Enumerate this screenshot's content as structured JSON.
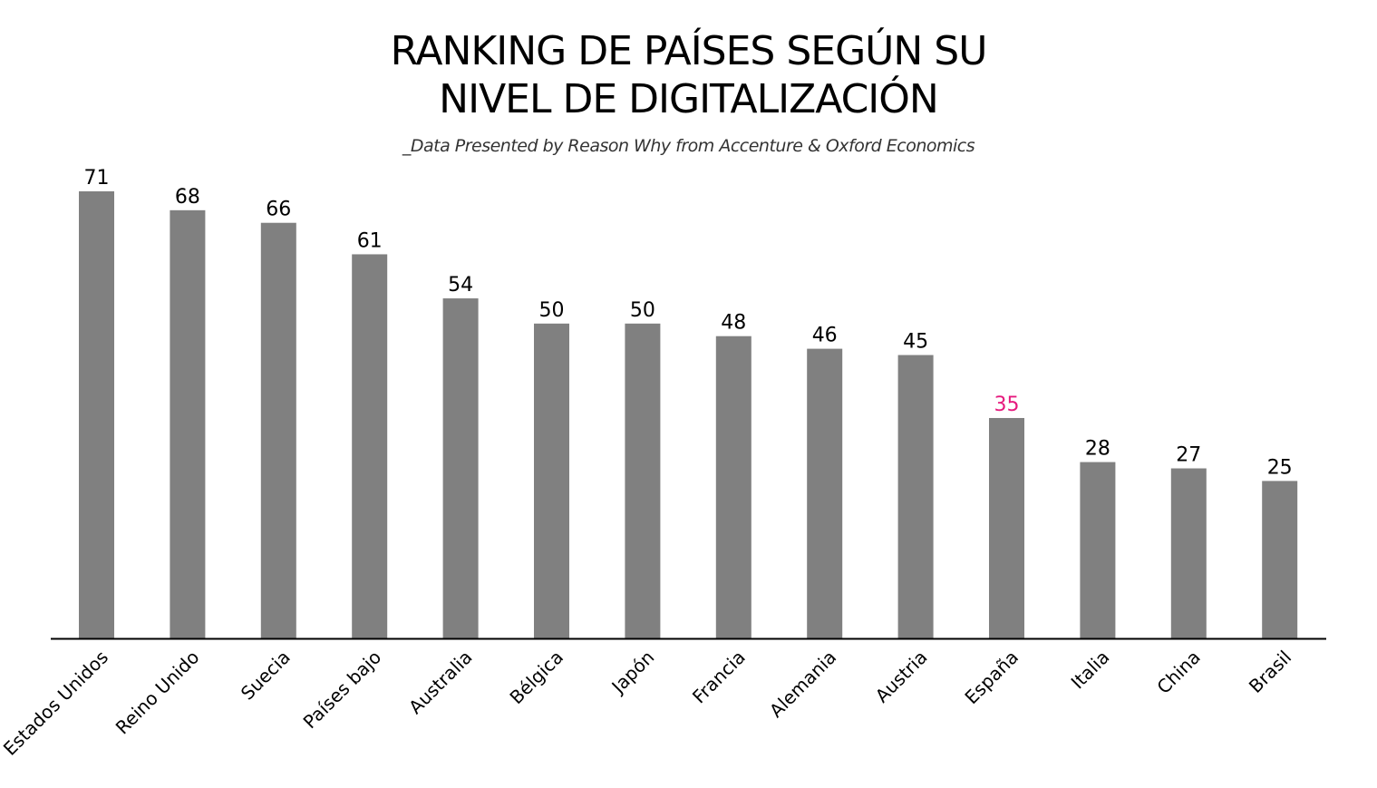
{
  "chart_data": {
    "type": "bar",
    "title_line1": "RANKING DE PAÍSES SEGÚN SU",
    "title_line2": "NIVEL DE DIGITALIZACIÓN",
    "subtitle": "_Data Presented by Reason Why from Accenture & Oxford Economics",
    "categories": [
      "Estados Unidos",
      "Reino Unido",
      "Suecia",
      "Países bajo",
      "Australia",
      "Bélgica",
      "Japón",
      "Francia",
      "Alemania",
      "Austria",
      "España",
      "Italia",
      "China",
      "Brasil"
    ],
    "values": [
      71,
      68,
      66,
      61,
      54,
      50,
      50,
      48,
      46,
      45,
      35,
      28,
      27,
      25
    ],
    "highlight_category": "España",
    "ylim": [
      0,
      71
    ],
    "grid": false,
    "colors": {
      "bar": "#808080",
      "label": "#000000",
      "highlight_label": "#e6197d",
      "axis": "#000000"
    }
  }
}
